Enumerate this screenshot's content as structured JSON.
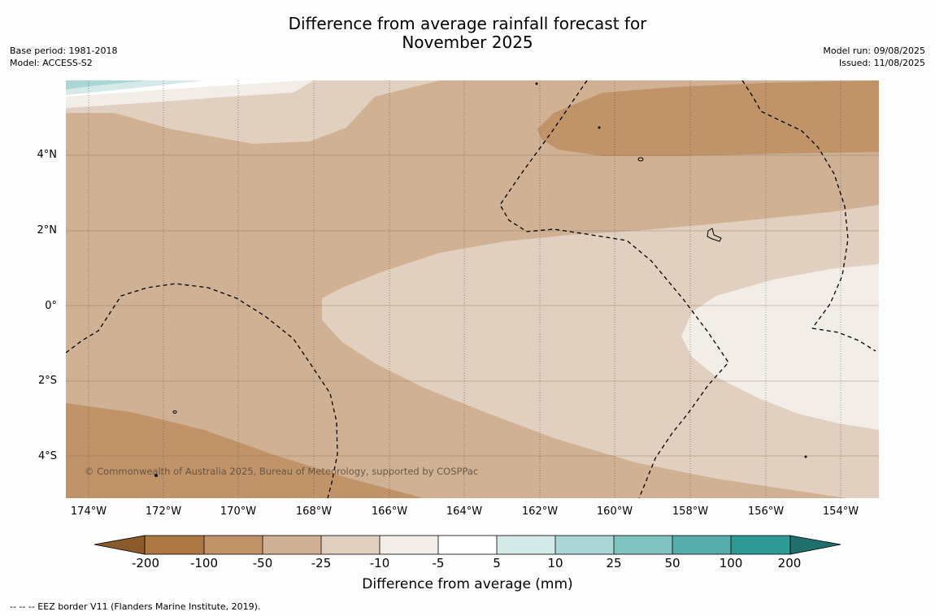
{
  "title": {
    "line1": "Difference from average rainfall forecast for",
    "line2": "November 2025"
  },
  "meta_left": {
    "base_period": "Base period: 1981-2018",
    "model": "Model: ACCESS-S2"
  },
  "meta_right": {
    "model_run": "Model run: 09/08/2025",
    "issued": "Issued: 11/08/2025"
  },
  "map": {
    "lat_labels": [
      "4°N",
      "2°N",
      "0°",
      "2°S",
      "4°S"
    ],
    "lon_labels": [
      "174°W",
      "172°W",
      "170°W",
      "168°W",
      "166°W",
      "164°W",
      "162°W",
      "160°W",
      "158°W",
      "156°W",
      "154°W"
    ],
    "copyright": "© Commonwealth of Australia 2025, Bureau of Meteorology, supported by COSPPac",
    "colors": {
      "lt_minus200": "#8a5a2b",
      "minus200_minus100": "#ad7741",
      "minus100_minus50": "#c09369",
      "minus50_minus25": "#d0b193",
      "minus25_minus10": "#e1d0bf",
      "minus10_minus5": "#f3ede8",
      "minus5_5": "#ffffff",
      "5_10": "#d4eae9",
      "10_25": "#aad6d5",
      "25_50": "#80c2c0",
      "50_100": "#57adab",
      "100_200": "#2e9995",
      "gt_200": "#1f706d"
    }
  },
  "colorbar": {
    "ticks": [
      "-200",
      "-100",
      "-50",
      "-25",
      "-10",
      "-5",
      "5",
      "10",
      "25",
      "50",
      "100",
      "200"
    ],
    "label": "Difference from average (mm)"
  },
  "footnote": "--  --  -- EEZ border V11 (Flanders Marine Institute, 2019)."
}
